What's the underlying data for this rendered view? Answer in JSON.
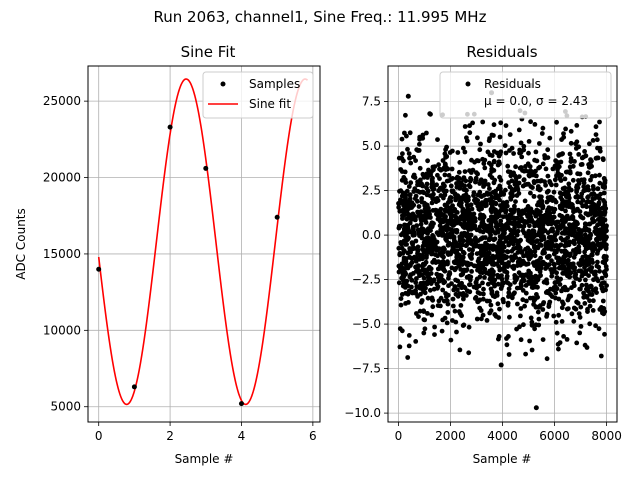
{
  "suptitle": "Run 2063, channel1, Sine Freq.: 11.995 MHz",
  "chart_data": [
    {
      "type": "line",
      "title": "Sine Fit",
      "xlabel": "Sample #",
      "ylabel": "ADC Counts",
      "xlim": [
        -0.3,
        6.2
      ],
      "ylim": [
        4000,
        27300
      ],
      "xticks": [
        0,
        2,
        4,
        6
      ],
      "yticks": [
        5000,
        10000,
        15000,
        20000,
        25000
      ],
      "xtick_labels": [
        "0",
        "2",
        "4",
        "6"
      ],
      "ytick_labels": [
        "5000",
        "10000",
        "15000",
        "20000",
        "25000"
      ],
      "grid": true,
      "legend": {
        "position": "top-right",
        "entries": [
          "Samples",
          "Sine fit"
        ]
      },
      "colors": {
        "samples": "#000000",
        "fit": "#ff0000"
      },
      "series": [
        {
          "name": "Samples",
          "kind": "scatter",
          "x": [
            0,
            1,
            2,
            3,
            4,
            5
          ],
          "y": [
            14000,
            6300,
            23300,
            20600,
            5200,
            17400
          ]
        },
        {
          "name": "Sine fit",
          "kind": "line",
          "model": {
            "amplitude": 10650,
            "offset": 15800,
            "period": 3.3333,
            "peak_x": 2.45
          },
          "x_range": [
            0,
            5.85
          ]
        }
      ]
    },
    {
      "type": "scatter",
      "title": "Residuals",
      "xlabel": "Sample #",
      "ylabel": "",
      "xlim": [
        -400,
        8400
      ],
      "ylim": [
        -10.5,
        9.5
      ],
      "xticks": [
        0,
        2000,
        4000,
        6000,
        8000
      ],
      "yticks": [
        -10.0,
        -7.5,
        -5.0,
        -2.5,
        0.0,
        2.5,
        5.0,
        7.5
      ],
      "xtick_labels": [
        "0",
        "2000",
        "4000",
        "6000",
        "8000"
      ],
      "ytick_labels": [
        "−10.0",
        "−7.5",
        "−5.0",
        "−2.5",
        "0.0",
        "2.5",
        "5.0",
        "7.5"
      ],
      "grid": true,
      "legend": {
        "position": "top-right",
        "entries": [
          "Residuals",
          "μ = 0.0, σ = 2.43"
        ]
      },
      "colors": {
        "points": "#000000"
      },
      "series": [
        {
          "name": "Residuals",
          "n_points": 8000,
          "x_range": [
            0,
            8000
          ],
          "mean": 0.0,
          "sigma": 2.43,
          "outliers": [
            {
              "x": 380,
              "y": 7.8
            },
            {
              "x": 3580,
              "y": 8.0
            },
            {
              "x": 5100,
              "y": 8.4
            },
            {
              "x": 5300,
              "y": -9.7
            },
            {
              "x": 3950,
              "y": -7.3
            }
          ]
        }
      ]
    }
  ]
}
